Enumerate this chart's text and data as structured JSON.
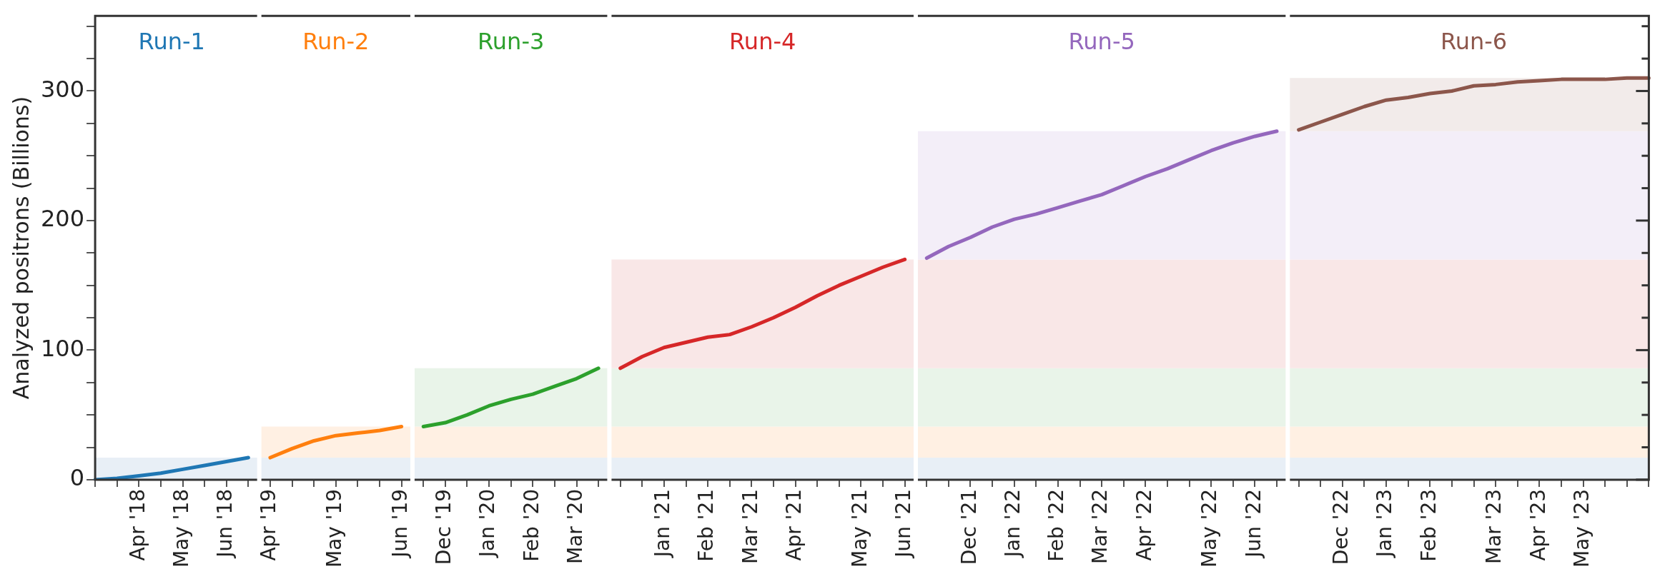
{
  "chart_data": {
    "type": "line",
    "ylabel": "Analyzed positrons (Billions)",
    "categories": [
      null,
      null,
      "Apr '18",
      null,
      "May '18",
      null,
      "Jun '18",
      null,
      "Apr '19",
      null,
      null,
      "May '19",
      null,
      null,
      "Jun '19",
      null,
      "Dec '19",
      null,
      "Jan '20",
      null,
      "Feb '20",
      null,
      "Mar '20",
      null,
      null,
      null,
      "Jan '21",
      null,
      "Feb '21",
      null,
      "Mar '21",
      null,
      "Apr '21",
      null,
      null,
      "May '21",
      null,
      "Jun '21",
      null,
      null,
      "Dec '21",
      null,
      "Jan '22",
      null,
      "Feb '22",
      null,
      "Mar '22",
      null,
      "Apr '22",
      null,
      null,
      "May '22",
      null,
      "Jun '22",
      null,
      null,
      null,
      "Dec '22",
      null,
      "Jan '23",
      null,
      "Feb '23",
      null,
      null,
      "Mar '23",
      null,
      "Apr '23",
      null,
      "May '23",
      null,
      null,
      null
    ],
    "series": [
      {
        "name": "Run-1",
        "color": "#1f77b4",
        "values": [
          0,
          1,
          3,
          5,
          8,
          11,
          14,
          17,
          null,
          null,
          null,
          null,
          null,
          null,
          null,
          null,
          null,
          null,
          null,
          null,
          null,
          null,
          null,
          null,
          null,
          null,
          null,
          null,
          null,
          null,
          null,
          null,
          null,
          null,
          null,
          null,
          null,
          null,
          null,
          null,
          null,
          null,
          null,
          null,
          null,
          null,
          null,
          null,
          null,
          null,
          null,
          null,
          null,
          null,
          null,
          null,
          null,
          null,
          null,
          null,
          null,
          null,
          null,
          null,
          null,
          null,
          null,
          null,
          null,
          null,
          null,
          null
        ]
      },
      {
        "name": "Run-2",
        "color": "#ff7f0e",
        "values": [
          null,
          null,
          null,
          null,
          null,
          null,
          null,
          null,
          17,
          24,
          30,
          34,
          36,
          38,
          41,
          null,
          null,
          null,
          null,
          null,
          null,
          null,
          null,
          null,
          null,
          null,
          null,
          null,
          null,
          null,
          null,
          null,
          null,
          null,
          null,
          null,
          null,
          null,
          null,
          null,
          null,
          null,
          null,
          null,
          null,
          null,
          null,
          null,
          null,
          null,
          null,
          null,
          null,
          null,
          null,
          null,
          null,
          null,
          null,
          null,
          null,
          null,
          null,
          null,
          null,
          null,
          null,
          null,
          null,
          null,
          null,
          null
        ]
      },
      {
        "name": "Run-3",
        "color": "#2ca02c",
        "values": [
          null,
          null,
          null,
          null,
          null,
          null,
          null,
          null,
          null,
          null,
          null,
          null,
          null,
          null,
          null,
          41,
          44,
          50,
          57,
          62,
          66,
          72,
          78,
          86,
          null,
          null,
          null,
          null,
          null,
          null,
          null,
          null,
          null,
          null,
          null,
          null,
          null,
          null,
          null,
          null,
          null,
          null,
          null,
          null,
          null,
          null,
          null,
          null,
          null,
          null,
          null,
          null,
          null,
          null,
          null,
          null,
          null,
          null,
          null,
          null,
          null,
          null,
          null,
          null,
          null,
          null,
          null,
          null,
          null,
          null,
          null,
          null
        ]
      },
      {
        "name": "Run-4",
        "color": "#d62728",
        "values": [
          null,
          null,
          null,
          null,
          null,
          null,
          null,
          null,
          null,
          null,
          null,
          null,
          null,
          null,
          null,
          null,
          null,
          null,
          null,
          null,
          null,
          null,
          null,
          null,
          86,
          95,
          102,
          106,
          110,
          112,
          118,
          125,
          133,
          142,
          150,
          157,
          164,
          170,
          null,
          null,
          null,
          null,
          null,
          null,
          null,
          null,
          null,
          null,
          null,
          null,
          null,
          null,
          null,
          null,
          null,
          null,
          null,
          null,
          null,
          null,
          null,
          null,
          null,
          null,
          null,
          null,
          null,
          null,
          null,
          null,
          null,
          null
        ]
      },
      {
        "name": "Run-5",
        "color": "#9467bd",
        "values": [
          null,
          null,
          null,
          null,
          null,
          null,
          null,
          null,
          null,
          null,
          null,
          null,
          null,
          null,
          null,
          null,
          null,
          null,
          null,
          null,
          null,
          null,
          null,
          null,
          null,
          null,
          null,
          null,
          null,
          null,
          null,
          null,
          null,
          null,
          null,
          null,
          null,
          null,
          171,
          180,
          187,
          195,
          201,
          205,
          210,
          215,
          220,
          227,
          234,
          240,
          247,
          254,
          260,
          265,
          269,
          null,
          null,
          null,
          null,
          null,
          null,
          null,
          null,
          null,
          null,
          null,
          null,
          null,
          null,
          null,
          null,
          null
        ]
      },
      {
        "name": "Run-6",
        "color": "#8c564b",
        "values": [
          null,
          null,
          null,
          null,
          null,
          null,
          null,
          null,
          null,
          null,
          null,
          null,
          null,
          null,
          null,
          null,
          null,
          null,
          null,
          null,
          null,
          null,
          null,
          null,
          null,
          null,
          null,
          null,
          null,
          null,
          null,
          null,
          null,
          null,
          null,
          null,
          null,
          null,
          null,
          null,
          null,
          null,
          null,
          null,
          null,
          null,
          null,
          null,
          null,
          null,
          null,
          null,
          null,
          null,
          null,
          270,
          276,
          282,
          288,
          293,
          295,
          298,
          300,
          304,
          305,
          307,
          308,
          309,
          309,
          309,
          310,
          310
        ]
      }
    ],
    "bands": [
      {
        "axis": "y",
        "from": 0,
        "to": 17,
        "color": "#e8eff6"
      },
      {
        "axis": "y",
        "from": 17,
        "to": 41,
        "color": "#fff0e3"
      },
      {
        "axis": "y",
        "from": 41,
        "to": 86,
        "color": "#e9f4e9"
      },
      {
        "axis": "y",
        "from": 86,
        "to": 170,
        "color": "#f9e7e7"
      },
      {
        "axis": "y",
        "from": 170,
        "to": 269,
        "color": "#f3eef8"
      },
      {
        "axis": "y",
        "from": 269,
        "to": 310,
        "color": "#f2ebea"
      }
    ],
    "ylim": [
      0,
      358
    ],
    "yticks": [
      0,
      {
        "value": 25,
        "label": null
      },
      {
        "value": 50,
        "label": null
      },
      {
        "value": 75,
        "label": null
      },
      100,
      {
        "value": 125,
        "label": null
      },
      {
        "value": 150,
        "label": null
      },
      {
        "value": 175,
        "label": null
      },
      200,
      {
        "value": 225,
        "label": null
      },
      {
        "value": 250,
        "label": null
      },
      {
        "value": 275,
        "label": null
      },
      300,
      {
        "value": 325,
        "label": null
      },
      {
        "value": 350,
        "label": null
      }
    ],
    "grid": false,
    "legend": false,
    "marker": "none",
    "line_style": "solid"
  }
}
